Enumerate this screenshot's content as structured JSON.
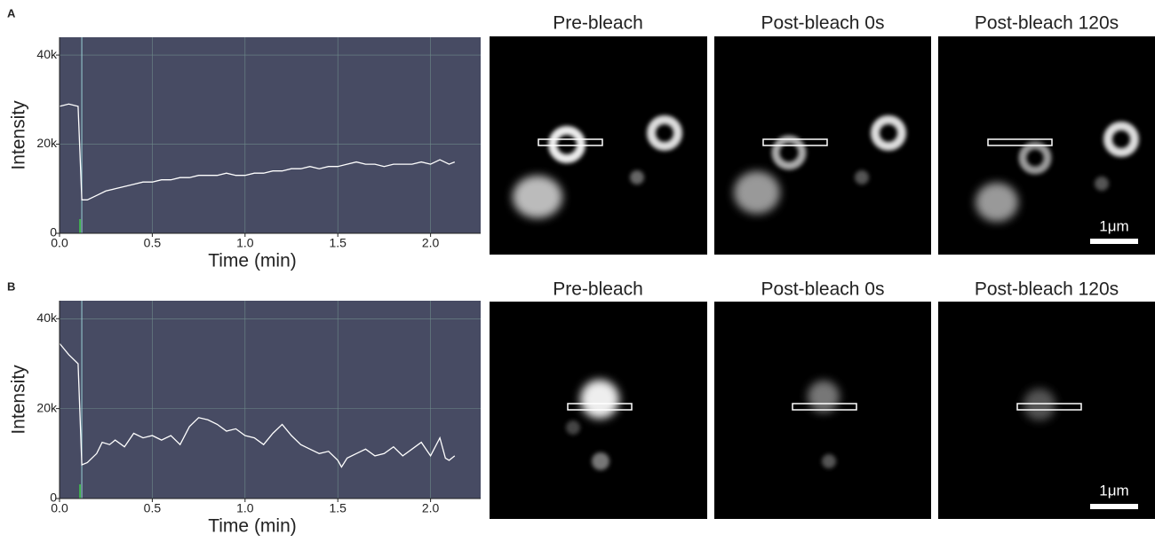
{
  "panels": [
    {
      "label": "A",
      "image_titles": [
        "Pre-bleach",
        "Post-bleach 0s",
        "Post-bleach 120s"
      ],
      "scale_bar": "1μm"
    },
    {
      "label": "B",
      "image_titles": [
        "Pre-bleach",
        "Post-bleach 0s",
        "Post-bleach 120s"
      ],
      "scale_bar": "1μm"
    }
  ],
  "chart_data": [
    {
      "type": "line",
      "x_label": "Time (min)",
      "y_label": "Intensity",
      "color": "#ffffff",
      "bleach_time": 0.12,
      "grid": true,
      "x": [
        0,
        0.05,
        0.1,
        0.12,
        0.15,
        0.2,
        0.25,
        0.3,
        0.35,
        0.4,
        0.45,
        0.5,
        0.55,
        0.6,
        0.65,
        0.7,
        0.75,
        0.8,
        0.85,
        0.9,
        0.95,
        1.0,
        1.05,
        1.1,
        1.15,
        1.2,
        1.25,
        1.3,
        1.35,
        1.4,
        1.45,
        1.5,
        1.55,
        1.6,
        1.65,
        1.7,
        1.75,
        1.8,
        1.85,
        1.9,
        1.95,
        2.0,
        2.05,
        2.1,
        2.13
      ],
      "values": [
        28500,
        29000,
        28500,
        7500,
        7500,
        8500,
        9500,
        10000,
        10500,
        11000,
        11500,
        11500,
        12000,
        12000,
        12500,
        12500,
        13000,
        13000,
        13000,
        13500,
        13000,
        13000,
        13500,
        13500,
        14000,
        14000,
        14500,
        14500,
        15000,
        14500,
        15000,
        15000,
        15500,
        16000,
        15500,
        15500,
        15000,
        15500,
        15500,
        15500,
        16000,
        15500,
        16500,
        15500,
        16000
      ],
      "xlim": [
        0,
        2.27
      ],
      "ylim": [
        0,
        44000
      ],
      "xticks": [
        {
          "value": 0,
          "label": "0.0"
        },
        {
          "value": 0.5,
          "label": "0.5"
        },
        {
          "value": 1,
          "label": "1.0"
        },
        {
          "value": 1.5,
          "label": "1.5"
        },
        {
          "value": 2,
          "label": "2.0"
        }
      ],
      "yticks": [
        0,
        {
          "value": 20000,
          "label": "20k"
        },
        {
          "value": 40000,
          "label": "40k"
        }
      ]
    },
    {
      "type": "line",
      "x_label": "Time (min)",
      "y_label": "Intensity",
      "color": "#ffffff",
      "bleach_time": 0.12,
      "grid": true,
      "x": [
        0,
        0.05,
        0.1,
        0.12,
        0.15,
        0.2,
        0.23,
        0.27,
        0.3,
        0.35,
        0.4,
        0.45,
        0.5,
        0.55,
        0.6,
        0.65,
        0.7,
        0.75,
        0.8,
        0.85,
        0.9,
        0.95,
        1.0,
        1.05,
        1.1,
        1.15,
        1.2,
        1.25,
        1.3,
        1.35,
        1.4,
        1.45,
        1.5,
        1.52,
        1.55,
        1.6,
        1.65,
        1.7,
        1.75,
        1.8,
        1.85,
        1.9,
        1.95,
        2.0,
        2.05,
        2.08,
        2.1,
        2.13
      ],
      "values": [
        34500,
        32000,
        30000,
        7500,
        8000,
        10000,
        12500,
        12000,
        13000,
        11500,
        14500,
        13500,
        14000,
        13000,
        14000,
        12000,
        16000,
        18000,
        17500,
        16500,
        15000,
        15500,
        14000,
        13500,
        12000,
        14500,
        16500,
        14000,
        12000,
        11000,
        10000,
        10500,
        8500,
        7000,
        9000,
        10000,
        11000,
        9500,
        10000,
        11500,
        9500,
        11000,
        12500,
        9500,
        13500,
        9000,
        8500,
        9500
      ],
      "xlim": [
        0,
        2.27
      ],
      "ylim": [
        0,
        44000
      ],
      "xticks": [
        {
          "value": 0,
          "label": "0.0"
        },
        {
          "value": 0.5,
          "label": "0.5"
        },
        {
          "value": 1,
          "label": "1.0"
        },
        {
          "value": 1.5,
          "label": "1.5"
        },
        {
          "value": 2,
          "label": "2.0"
        }
      ],
      "yticks": [
        0,
        {
          "value": 20000,
          "label": "20k"
        },
        {
          "value": 40000,
          "label": "40k"
        }
      ]
    }
  ]
}
